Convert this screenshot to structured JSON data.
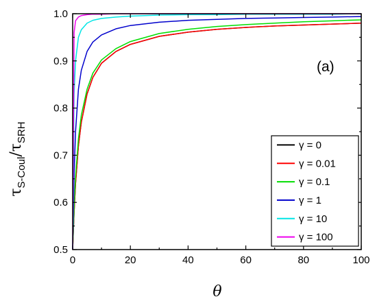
{
  "chart_data": {
    "type": "line",
    "panel_label": "(a)",
    "xlabel": "θ",
    "ylabel": {
      "main1": "τ",
      "sub1": "S-Coul",
      "slash": "/",
      "main2": "τ",
      "sub2": "SRH"
    },
    "xlim": [
      0,
      100
    ],
    "ylim": [
      0.5,
      1.0
    ],
    "x_ticks": [
      0,
      20,
      40,
      60,
      80,
      100
    ],
    "x_tick_labels": [
      "0",
      "20",
      "40",
      "60",
      "80",
      "100"
    ],
    "y_ticks": [
      0.5,
      0.6,
      0.7,
      0.8,
      0.9,
      1.0
    ],
    "y_tick_labels": [
      "0.5",
      "0.6",
      "0.7",
      "0.8",
      "0.9",
      "1.0"
    ],
    "legend_position": "bottom-right",
    "x": [
      0,
      0.5,
      1,
      2,
      3,
      5,
      7,
      10,
      15,
      20,
      30,
      40,
      50,
      60,
      70,
      80,
      90,
      100
    ],
    "series": [
      {
        "name": "γ = 0",
        "color": "#000000",
        "values": [
          0.5,
          0.58,
          0.64,
          0.72,
          0.77,
          0.83,
          0.865,
          0.895,
          0.92,
          0.935,
          0.952,
          0.961,
          0.967,
          0.971,
          0.974,
          0.976,
          0.978,
          0.98
        ]
      },
      {
        "name": "γ = 0.01",
        "color": "#ff0000",
        "values": [
          0.5,
          0.58,
          0.64,
          0.72,
          0.77,
          0.83,
          0.865,
          0.895,
          0.92,
          0.935,
          0.952,
          0.961,
          0.967,
          0.971,
          0.974,
          0.976,
          0.978,
          0.98
        ]
      },
      {
        "name": "γ = 0.1",
        "color": "#00dd00",
        "values": [
          0.5,
          0.59,
          0.655,
          0.735,
          0.785,
          0.84,
          0.874,
          0.902,
          0.926,
          0.941,
          0.958,
          0.967,
          0.973,
          0.977,
          0.98,
          0.983,
          0.985,
          0.987
        ]
      },
      {
        "name": "γ = 1",
        "color": "#0000cc",
        "values": [
          0.5,
          0.66,
          0.75,
          0.84,
          0.88,
          0.92,
          0.94,
          0.955,
          0.968,
          0.975,
          0.982,
          0.986,
          0.988,
          0.99,
          0.991,
          0.992,
          0.993,
          0.994
        ]
      },
      {
        "name": "γ = 10",
        "color": "#00e5e5",
        "values": [
          0.5,
          0.83,
          0.9,
          0.95,
          0.966,
          0.98,
          0.986,
          0.99,
          0.993,
          0.995,
          0.997,
          0.998,
          0.998,
          0.999,
          0.999,
          0.999,
          0.999,
          1.0
        ]
      },
      {
        "name": "γ = 100",
        "color": "#ee00ee",
        "values": [
          0.5,
          0.96,
          0.985,
          0.993,
          0.996,
          0.998,
          0.999,
          0.999,
          1.0,
          1.0,
          1.0,
          1.0,
          1.0,
          1.0,
          1.0,
          1.0,
          1.0,
          1.0
        ]
      }
    ]
  }
}
